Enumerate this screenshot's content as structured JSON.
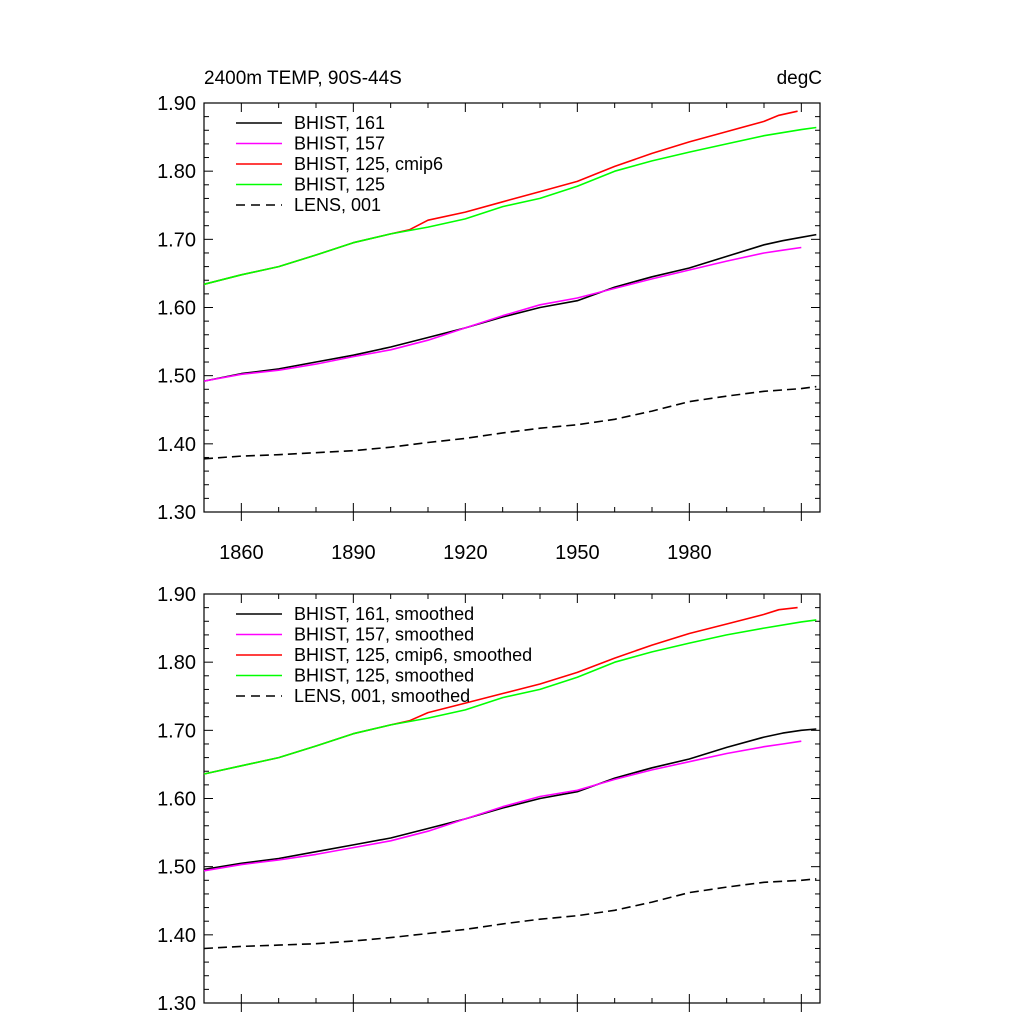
{
  "chart_data": [
    {
      "type": "line",
      "title": "2400m TEMP, 90S-44S",
      "units": "degC",
      "xlim": [
        1850,
        2015
      ],
      "ylim": [
        1.3,
        1.9
      ],
      "yticks": [
        "1.30",
        "1.40",
        "1.50",
        "1.60",
        "1.70",
        "1.80",
        "1.90"
      ],
      "xticks": [
        "1860",
        "1890",
        "1920",
        "1950",
        "1980"
      ],
      "series": [
        {
          "name": "BHIST, 161",
          "color": "#000000",
          "dash": "solid",
          "x": [
            1850,
            1860,
            1870,
            1880,
            1890,
            1900,
            1910,
            1920,
            1930,
            1940,
            1950,
            1960,
            1970,
            1980,
            1990,
            2000,
            2005,
            2010,
            2014
          ],
          "y": [
            1.492,
            1.503,
            1.51,
            1.52,
            1.53,
            1.542,
            1.556,
            1.57,
            1.586,
            1.6,
            1.61,
            1.63,
            1.645,
            1.658,
            1.675,
            1.692,
            1.698,
            1.703,
            1.707
          ]
        },
        {
          "name": "BHIST, 157",
          "color": "#ff00ff",
          "dash": "solid",
          "x": [
            1850,
            1860,
            1870,
            1880,
            1890,
            1900,
            1910,
            1920,
            1930,
            1940,
            1950,
            1960,
            1970,
            1980,
            1990,
            2000,
            2005,
            2010
          ],
          "y": [
            1.492,
            1.502,
            1.508,
            1.517,
            1.528,
            1.538,
            1.552,
            1.57,
            1.588,
            1.604,
            1.614,
            1.628,
            1.642,
            1.655,
            1.668,
            1.68,
            1.684,
            1.688
          ]
        },
        {
          "name": "BHIST, 125, cmip6",
          "color": "#ff0000",
          "dash": "solid",
          "x": [
            1850,
            1860,
            1870,
            1880,
            1890,
            1900,
            1905,
            1910,
            1920,
            1930,
            1940,
            1950,
            1960,
            1970,
            1980,
            1990,
            2000,
            2004,
            2009
          ],
          "y": [
            1.634,
            1.648,
            1.66,
            1.677,
            1.695,
            1.708,
            1.714,
            1.728,
            1.74,
            1.755,
            1.77,
            1.785,
            1.807,
            1.826,
            1.843,
            1.858,
            1.873,
            1.882,
            1.888
          ]
        },
        {
          "name": "BHIST, 125",
          "color": "#00ff00",
          "dash": "solid",
          "x": [
            1850,
            1860,
            1870,
            1880,
            1890,
            1900,
            1910,
            1920,
            1930,
            1940,
            1950,
            1960,
            1970,
            1980,
            1990,
            2000,
            2010,
            2014
          ],
          "y": [
            1.634,
            1.648,
            1.66,
            1.677,
            1.695,
            1.708,
            1.718,
            1.73,
            1.748,
            1.76,
            1.778,
            1.8,
            1.815,
            1.828,
            1.84,
            1.852,
            1.861,
            1.864
          ]
        },
        {
          "name": "LENS, 001",
          "color": "#000000",
          "dash": "dashed",
          "x": [
            1850,
            1860,
            1870,
            1880,
            1890,
            1900,
            1910,
            1920,
            1930,
            1940,
            1950,
            1960,
            1970,
            1980,
            1990,
            2000,
            2010,
            2014
          ],
          "y": [
            1.378,
            1.382,
            1.384,
            1.387,
            1.39,
            1.395,
            1.402,
            1.408,
            1.416,
            1.423,
            1.428,
            1.436,
            1.448,
            1.462,
            1.47,
            1.477,
            1.481,
            1.484
          ]
        }
      ]
    },
    {
      "type": "line",
      "ylim": [
        1.3,
        1.9
      ],
      "yticks": [
        "1.30",
        "1.40",
        "1.50",
        "1.60",
        "1.70",
        "1.80",
        "1.90"
      ],
      "xlim": [
        1850,
        2015
      ],
      "series": [
        {
          "name": "BHIST, 161, smoothed",
          "color": "#000000",
          "dash": "solid",
          "x": [
            1850,
            1860,
            1870,
            1880,
            1890,
            1900,
            1910,
            1920,
            1930,
            1940,
            1950,
            1960,
            1970,
            1980,
            1990,
            2000,
            2005,
            2010,
            2014
          ],
          "y": [
            1.496,
            1.505,
            1.512,
            1.522,
            1.532,
            1.542,
            1.556,
            1.57,
            1.586,
            1.6,
            1.61,
            1.63,
            1.645,
            1.658,
            1.675,
            1.69,
            1.696,
            1.7,
            1.702
          ]
        },
        {
          "name": "BHIST, 157, smoothed",
          "color": "#ff00ff",
          "dash": "solid",
          "x": [
            1850,
            1860,
            1870,
            1880,
            1890,
            1900,
            1910,
            1920,
            1930,
            1940,
            1950,
            1960,
            1970,
            1980,
            1990,
            2000,
            2005,
            2010
          ],
          "y": [
            1.494,
            1.503,
            1.51,
            1.518,
            1.528,
            1.538,
            1.552,
            1.57,
            1.588,
            1.603,
            1.612,
            1.628,
            1.642,
            1.654,
            1.666,
            1.676,
            1.68,
            1.684
          ]
        },
        {
          "name": "BHIST, 125, cmip6, smoothed",
          "color": "#ff0000",
          "dash": "solid",
          "x": [
            1850,
            1860,
            1870,
            1880,
            1890,
            1900,
            1905,
            1910,
            1920,
            1930,
            1940,
            1950,
            1960,
            1970,
            1980,
            1990,
            2000,
            2004,
            2009
          ],
          "y": [
            1.636,
            1.648,
            1.66,
            1.677,
            1.695,
            1.708,
            1.714,
            1.726,
            1.74,
            1.754,
            1.768,
            1.785,
            1.806,
            1.825,
            1.842,
            1.856,
            1.87,
            1.877,
            1.88
          ]
        },
        {
          "name": "BHIST, 125, smoothed",
          "color": "#00ff00",
          "dash": "solid",
          "x": [
            1850,
            1860,
            1870,
            1880,
            1890,
            1900,
            1910,
            1920,
            1930,
            1940,
            1950,
            1960,
            1970,
            1980,
            1990,
            2000,
            2010,
            2014
          ],
          "y": [
            1.636,
            1.648,
            1.66,
            1.677,
            1.695,
            1.708,
            1.718,
            1.73,
            1.748,
            1.76,
            1.778,
            1.8,
            1.815,
            1.828,
            1.84,
            1.85,
            1.859,
            1.862
          ]
        },
        {
          "name": "LENS, 001, smoothed",
          "color": "#000000",
          "dash": "dashed",
          "x": [
            1850,
            1860,
            1870,
            1880,
            1890,
            1900,
            1910,
            1920,
            1930,
            1940,
            1950,
            1960,
            1970,
            1980,
            1990,
            2000,
            2010,
            2014
          ],
          "y": [
            1.38,
            1.383,
            1.385,
            1.387,
            1.391,
            1.396,
            1.402,
            1.408,
            1.416,
            1.423,
            1.428,
            1.436,
            1.448,
            1.462,
            1.47,
            1.477,
            1.48,
            1.482
          ]
        }
      ]
    }
  ]
}
